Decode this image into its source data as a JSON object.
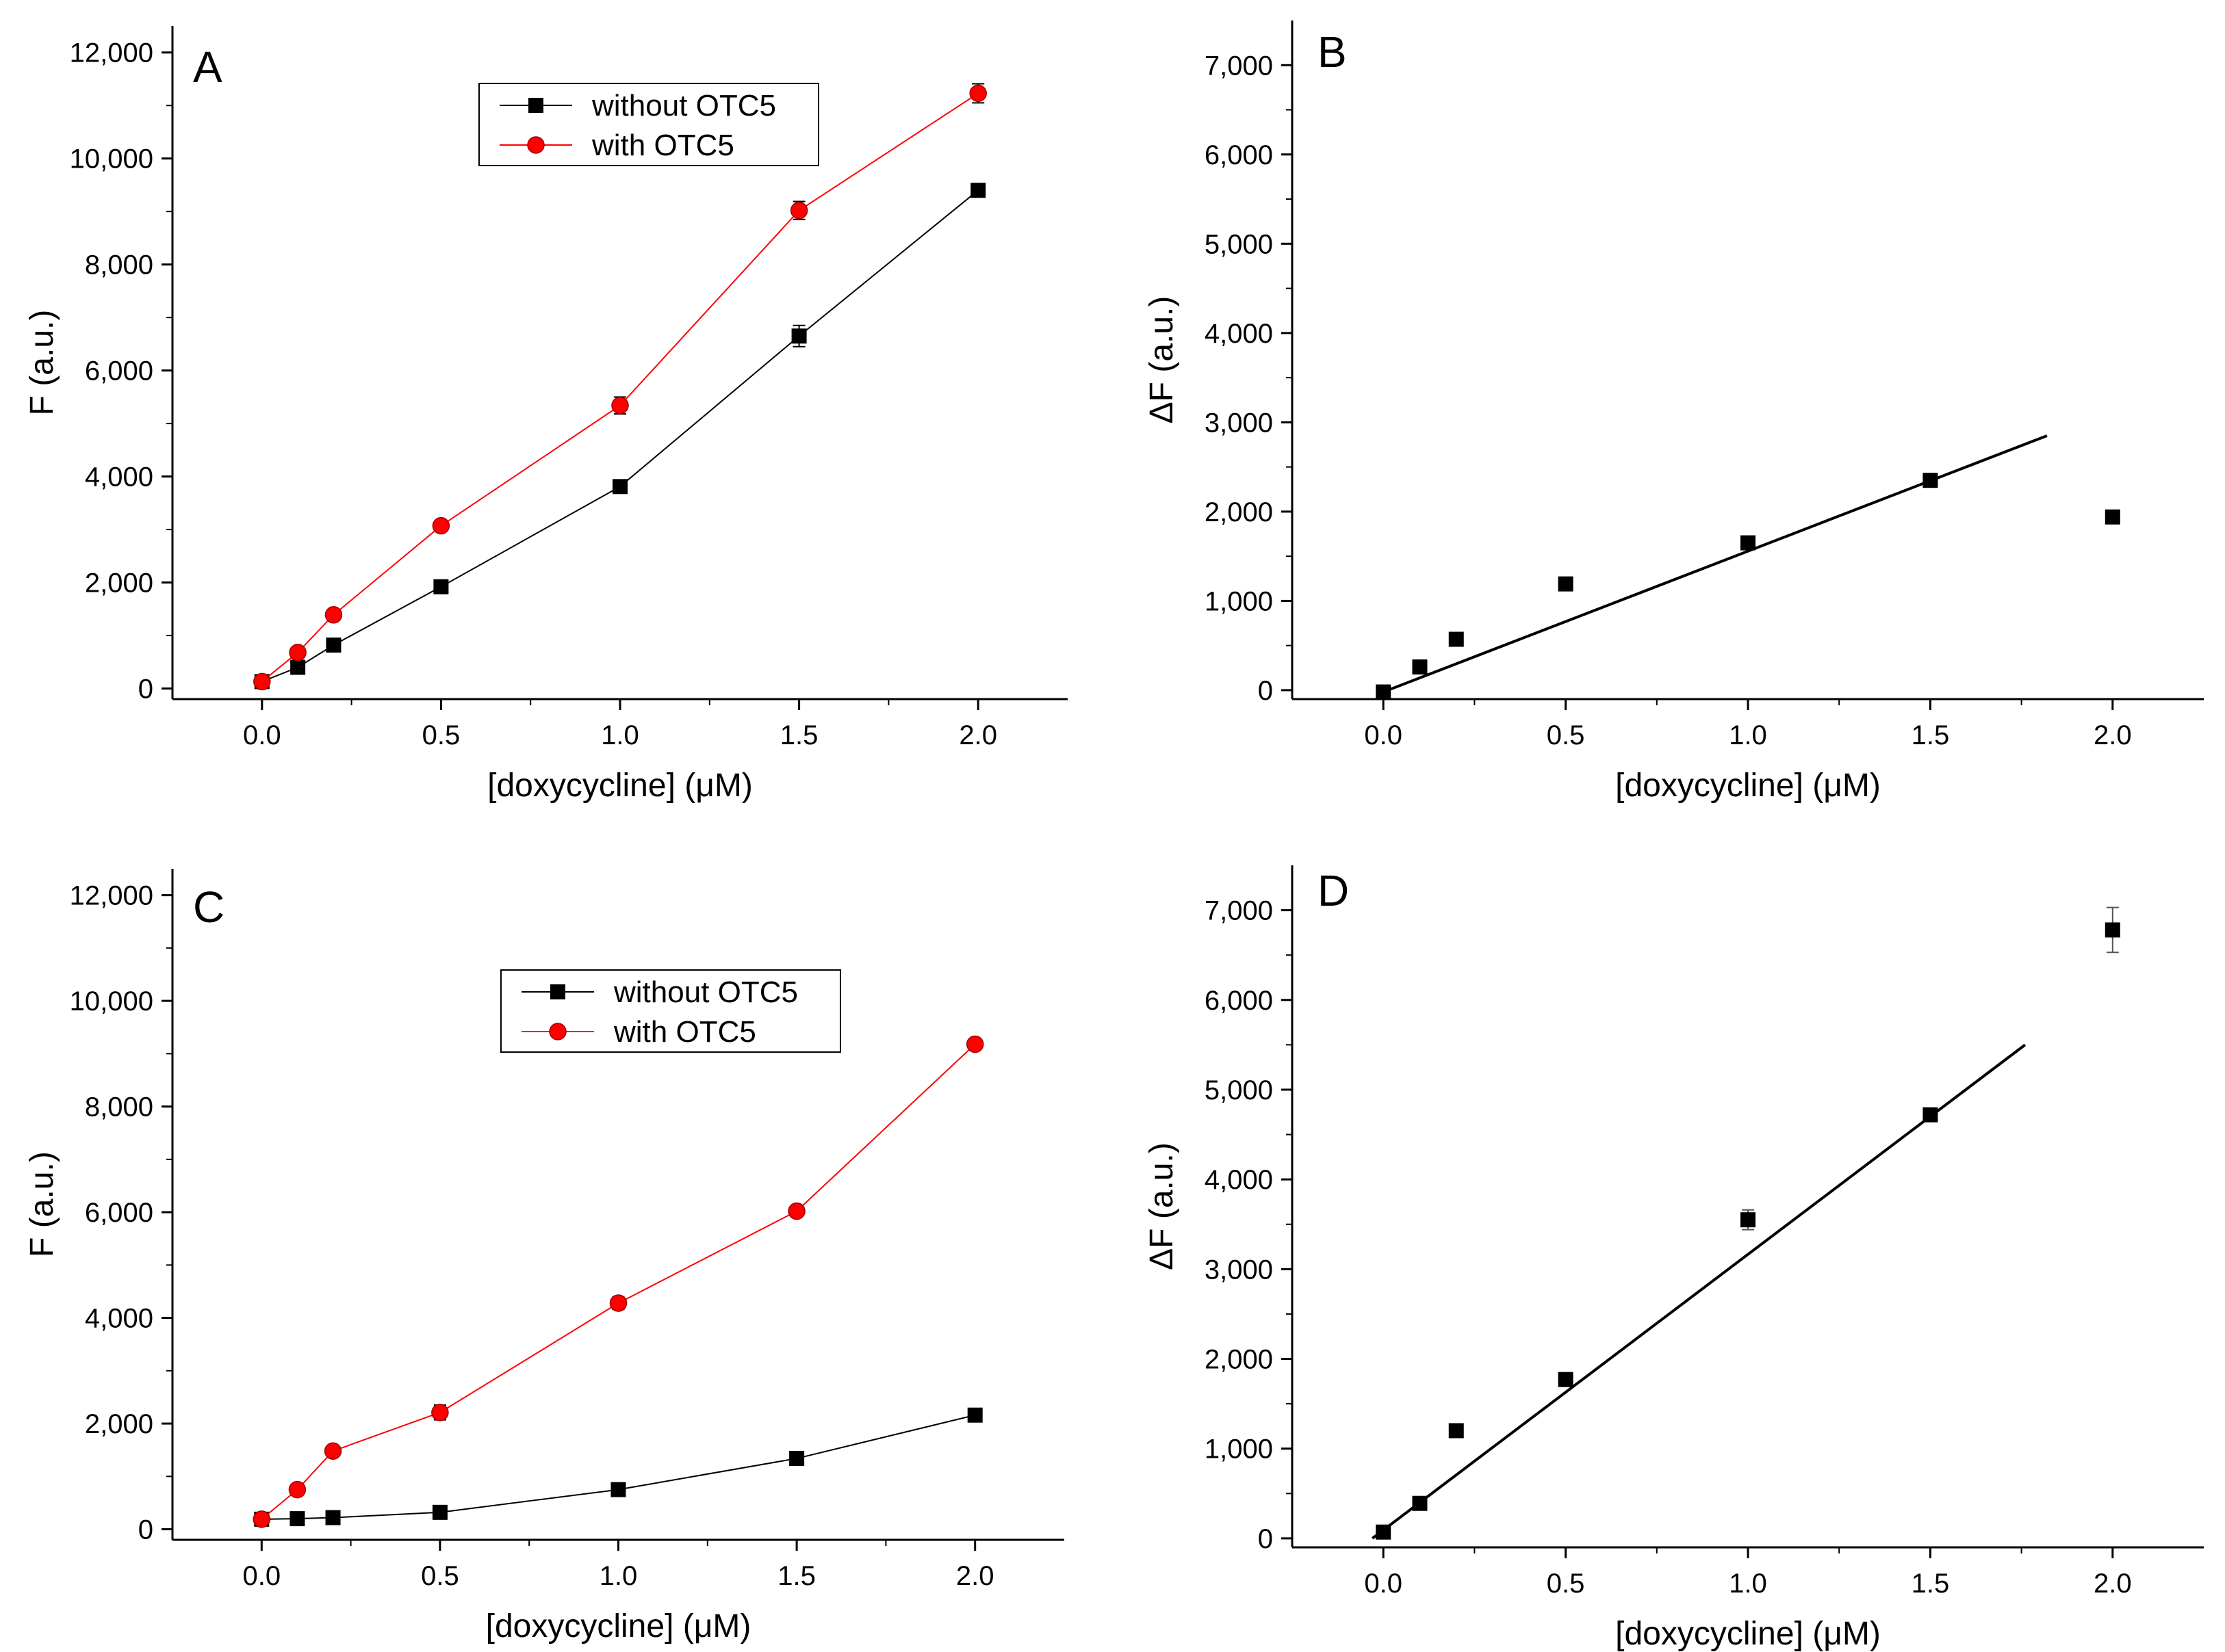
{
  "chart_data": [
    {
      "panel": "A",
      "type": "line",
      "xlabel": "[doxycycline] (μM)",
      "ylabel": "F (a.u.)",
      "xlim": [
        -0.25,
        2.25
      ],
      "ylim": [
        -200,
        12500
      ],
      "xticks": [
        0.0,
        0.5,
        1.0,
        1.5,
        2.0
      ],
      "xtick_labels": [
        "0.0",
        "0.5",
        "1.0",
        "1.5",
        "2.0"
      ],
      "yticks": [
        0,
        2000,
        4000,
        6000,
        8000,
        10000,
        12000
      ],
      "ytick_labels": [
        "0",
        "2,000",
        "4,000",
        "6,000",
        "8,000",
        "10,000",
        "12,000"
      ],
      "legend": "top-center",
      "series": [
        {
          "name": "without OTC5",
          "color": "#000000",
          "marker": "square",
          "x": [
            0,
            0.1,
            0.2,
            0.5,
            1.0,
            1.5,
            2.0
          ],
          "y": [
            130,
            400,
            820,
            1920,
            3810,
            6650,
            9400
          ],
          "err": [
            0,
            0,
            0,
            0,
            120,
            200,
            0
          ]
        },
        {
          "name": "with OTC5",
          "color": "#ff0000",
          "marker": "circle",
          "x": [
            0,
            0.1,
            0.2,
            0.5,
            1.0,
            1.5,
            2.0
          ],
          "y": [
            130,
            680,
            1390,
            3070,
            5340,
            9020,
            11230
          ],
          "err": [
            0,
            0,
            0,
            0,
            160,
            170,
            180
          ]
        }
      ]
    },
    {
      "panel": "B",
      "type": "scatter",
      "xlabel": "[doxycycline] (μM)",
      "ylabel": "ΔF (a.u.)",
      "xlim": [
        -0.25,
        2.25
      ],
      "ylim": [
        -100,
        7500
      ],
      "xticks": [
        0.0,
        0.5,
        1.0,
        1.5,
        2.0
      ],
      "xtick_labels": [
        "0.0",
        "0.5",
        "1.0",
        "1.5",
        "2.0"
      ],
      "yticks": [
        0,
        1000,
        2000,
        3000,
        4000,
        5000,
        6000,
        7000
      ],
      "ytick_labels": [
        "0",
        "1,000",
        "2,000",
        "3,000",
        "4,000",
        "5,000",
        "6,000",
        "7,000"
      ],
      "points": {
        "x": [
          0,
          0.1,
          0.2,
          0.5,
          1.0,
          1.5,
          2.0
        ],
        "y": [
          -20,
          260,
          570,
          1190,
          1650,
          2350,
          1940
        ],
        "err": [
          0,
          0,
          0,
          0,
          0,
          60,
          0
        ]
      },
      "fit": {
        "x": [
          0,
          1.82
        ],
        "y": [
          -20,
          2850
        ]
      }
    },
    {
      "panel": "C",
      "type": "line",
      "xlabel": "[doxycycline] (μM)",
      "ylabel": "F (a.u.)",
      "xlim": [
        -0.25,
        2.25
      ],
      "ylim": [
        -200,
        12500
      ],
      "xticks": [
        0.0,
        0.5,
        1.0,
        1.5,
        2.0
      ],
      "xtick_labels": [
        "0.0",
        "0.5",
        "1.0",
        "1.5",
        "2.0"
      ],
      "yticks": [
        0,
        2000,
        4000,
        6000,
        8000,
        10000,
        12000
      ],
      "ytick_labels": [
        "0",
        "2,000",
        "4,000",
        "6,000",
        "8,000",
        "10,000",
        "12,000"
      ],
      "legend": "top-center",
      "series": [
        {
          "name": "without OTC5",
          "color": "#000000",
          "marker": "square",
          "x": [
            0,
            0.1,
            0.2,
            0.5,
            1.0,
            1.5,
            2.0
          ],
          "y": [
            190,
            200,
            220,
            320,
            750,
            1340,
            2160
          ],
          "err": [
            0,
            0,
            0,
            0,
            0,
            0,
            0
          ]
        },
        {
          "name": "with OTC5",
          "color": "#ff0000",
          "marker": "circle",
          "x": [
            0,
            0.1,
            0.2,
            0.5,
            1.0,
            1.5,
            2.0
          ],
          "y": [
            190,
            750,
            1480,
            2210,
            4280,
            6020,
            9180
          ],
          "err": [
            0,
            0,
            0,
            140,
            120,
            0,
            0
          ]
        }
      ]
    },
    {
      "panel": "D",
      "type": "scatter",
      "xlabel": "[doxycycline] (μM)",
      "ylabel": "ΔF (a.u.)",
      "xlim": [
        -0.25,
        2.25
      ],
      "ylim": [
        -100,
        7500
      ],
      "xticks": [
        0.0,
        0.5,
        1.0,
        1.5,
        2.0
      ],
      "xtick_labels": [
        "0.0",
        "0.5",
        "1.0",
        "1.5",
        "2.0"
      ],
      "yticks": [
        0,
        1000,
        2000,
        3000,
        4000,
        5000,
        6000,
        7000
      ],
      "ytick_labels": [
        "0",
        "1,000",
        "2,000",
        "3,000",
        "4,000",
        "5,000",
        "6,000",
        "7,000"
      ],
      "points": {
        "x": [
          0,
          0.1,
          0.2,
          0.5,
          1.0,
          1.5,
          2.0
        ],
        "y": [
          70,
          390,
          1200,
          1770,
          3550,
          4720,
          6780
        ],
        "err": [
          0,
          0,
          0,
          0,
          110,
          0,
          250
        ]
      },
      "fit": {
        "x": [
          -0.03,
          1.76
        ],
        "y": [
          0,
          5500
        ]
      }
    }
  ]
}
